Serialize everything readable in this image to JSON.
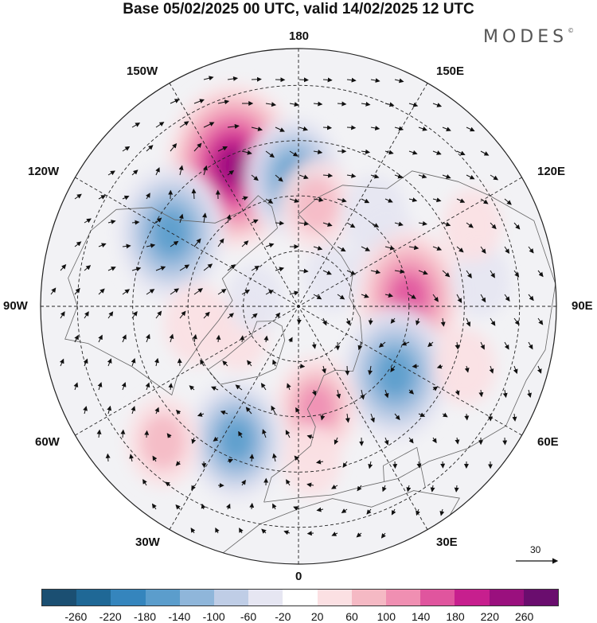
{
  "title": "Base 05/02/2025 00 UTC, valid 14/02/2025 12 UTC",
  "brand": "MODES",
  "brand_mark": "©",
  "lon_labels": {
    "n180": "180",
    "w150": "150W",
    "e150": "150E",
    "w120": "120W",
    "e120": "120E",
    "w90": "90W",
    "e90": "90E",
    "w60": "60W",
    "e60": "60E",
    "w30": "30W",
    "e30": "30E",
    "s0": "0"
  },
  "reference_vector": "30",
  "colorbar": {
    "colors": [
      "#1b4f72",
      "#1f6896",
      "#3585bd",
      "#5b9dcc",
      "#8fb6da",
      "#bfcde6",
      "#e6e6f2",
      "#ffffff",
      "#fbe0e3",
      "#f5b9c4",
      "#f08fb2",
      "#e0559e",
      "#c71f8e",
      "#9a107e",
      "#6a0d6e"
    ],
    "ticks": [
      "-260",
      "-220",
      "-180",
      "-140",
      "-100",
      "-60",
      "-20",
      "20",
      "60",
      "100",
      "140",
      "180",
      "220",
      "260"
    ]
  },
  "anomalies": [
    {
      "lon": -155,
      "lat": 48,
      "value": 250
    },
    {
      "lon": -178,
      "lat": 55,
      "value": -150
    },
    {
      "lon": -120,
      "lat": 50,
      "value": -180
    },
    {
      "lon": 170,
      "lat": 62,
      "value": 80
    },
    {
      "lon": 140,
      "lat": 58,
      "value": -60
    },
    {
      "lon": 115,
      "lat": 62,
      "value": -90
    },
    {
      "lon": 95,
      "lat": 60,
      "value": 180
    },
    {
      "lon": 98,
      "lat": 40,
      "value": -40
    },
    {
      "lon": 115,
      "lat": 38,
      "value": 40
    },
    {
      "lon": 55,
      "lat": 58,
      "value": -180
    },
    {
      "lon": 70,
      "lat": 42,
      "value": 50
    },
    {
      "lon": 10,
      "lat": 62,
      "value": 110
    },
    {
      "lon": 5,
      "lat": 48,
      "value": 40
    },
    {
      "lon": -25,
      "lat": 50,
      "value": -150
    },
    {
      "lon": -45,
      "lat": 38,
      "value": 80
    },
    {
      "lon": -80,
      "lat": 62,
      "value": 60
    },
    {
      "lon": -65,
      "lat": 72,
      "value": 40
    },
    {
      "lon": 130,
      "lat": 78,
      "value": -30
    },
    {
      "lon": -100,
      "lat": 78,
      "value": -30
    }
  ]
}
